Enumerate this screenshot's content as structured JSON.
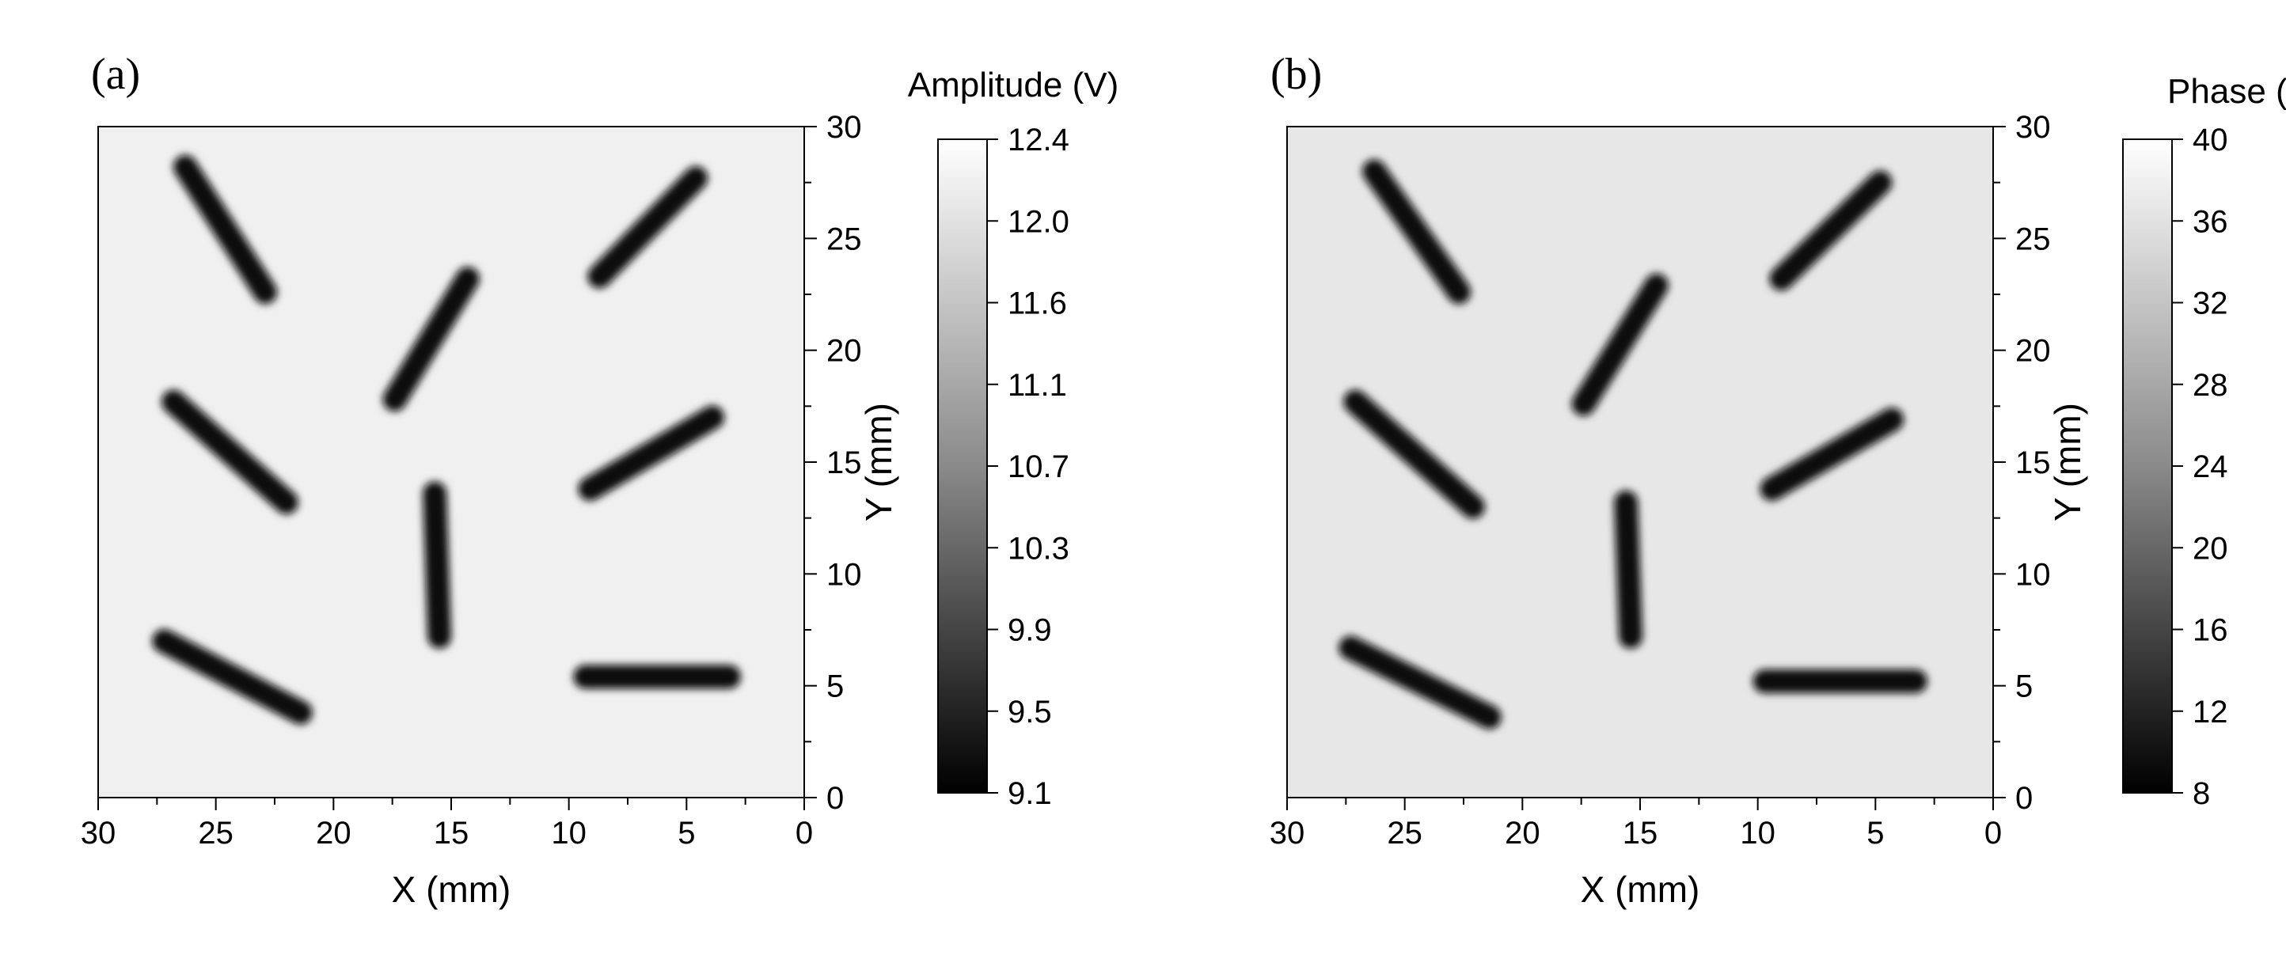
{
  "chart_data": [
    {
      "type": "heatmap",
      "panel_label": "(a)",
      "xlabel": "X (mm)",
      "ylabel": "Y (mm)",
      "colorbar_label": "Amplitude (V)",
      "xlim": [
        30,
        0
      ],
      "ylim": [
        0,
        30
      ],
      "xticks": [
        "30",
        "25",
        "20",
        "15",
        "10",
        "5",
        "0"
      ],
      "yticks": [
        "0",
        "5",
        "10",
        "15",
        "20",
        "25",
        "30"
      ],
      "colorbar_range": [
        9.1,
        12.4
      ],
      "colorbar_ticks": [
        "9.1",
        "9.5",
        "9.9",
        "10.3",
        "10.7",
        "11.1",
        "11.6",
        "12.0",
        "12.4"
      ],
      "background_level": 12.2,
      "defect_level": 9.2,
      "defects": [
        {
          "x1": 26.3,
          "y1": 28.2,
          "x2": 22.9,
          "y2": 22.6
        },
        {
          "x1": 8.7,
          "y1": 23.3,
          "x2": 4.6,
          "y2": 27.7
        },
        {
          "x1": 17.4,
          "y1": 17.8,
          "x2": 14.3,
          "y2": 23.2
        },
        {
          "x1": 26.8,
          "y1": 17.7,
          "x2": 22.0,
          "y2": 13.2
        },
        {
          "x1": 9.1,
          "y1": 13.8,
          "x2": 3.9,
          "y2": 17.0
        },
        {
          "x1": 15.7,
          "y1": 13.6,
          "x2": 15.5,
          "y2": 7.2
        },
        {
          "x1": 27.2,
          "y1": 7.0,
          "x2": 21.4,
          "y2": 3.8
        },
        {
          "x1": 9.3,
          "y1": 5.4,
          "x2": 3.2,
          "y2": 5.4
        }
      ]
    },
    {
      "type": "heatmap",
      "panel_label": "(b)",
      "xlabel": "X (mm)",
      "ylabel": "Y (mm)",
      "colorbar_label": "Phase (°)",
      "xlim": [
        30,
        0
      ],
      "ylim": [
        0,
        30
      ],
      "xticks": [
        "30",
        "25",
        "20",
        "15",
        "10",
        "5",
        "0"
      ],
      "yticks": [
        "0",
        "5",
        "10",
        "15",
        "20",
        "25",
        "30"
      ],
      "colorbar_range": [
        8,
        40
      ],
      "colorbar_ticks": [
        "8",
        "12",
        "16",
        "20",
        "24",
        "28",
        "32",
        "36",
        "40"
      ],
      "background_level": 37,
      "defect_level": 10,
      "defects": [
        {
          "x1": 26.3,
          "y1": 28.0,
          "x2": 22.7,
          "y2": 22.6
        },
        {
          "x1": 9.0,
          "y1": 23.2,
          "x2": 4.8,
          "y2": 27.5
        },
        {
          "x1": 17.4,
          "y1": 17.6,
          "x2": 14.3,
          "y2": 22.9
        },
        {
          "x1": 27.1,
          "y1": 17.7,
          "x2": 22.1,
          "y2": 13.0
        },
        {
          "x1": 9.4,
          "y1": 13.8,
          "x2": 4.3,
          "y2": 16.9
        },
        {
          "x1": 15.6,
          "y1": 13.2,
          "x2": 15.4,
          "y2": 7.2
        },
        {
          "x1": 27.3,
          "y1": 6.7,
          "x2": 21.4,
          "y2": 3.6
        },
        {
          "x1": 9.7,
          "y1": 5.2,
          "x2": 3.3,
          "y2": 5.2
        }
      ]
    }
  ]
}
